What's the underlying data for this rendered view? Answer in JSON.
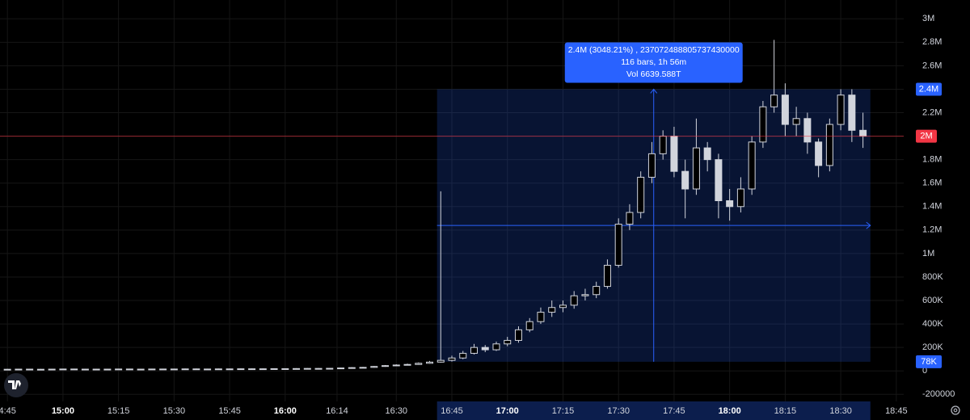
{
  "chart_data": {
    "type": "candlestick",
    "x": [
      "14:45",
      "14:48",
      "14:51",
      "14:54",
      "14:57",
      "15:00",
      "15:03",
      "15:06",
      "15:09",
      "15:12",
      "15:15",
      "15:18",
      "15:21",
      "15:24",
      "15:27",
      "15:30",
      "15:33",
      "15:36",
      "15:39",
      "15:42",
      "15:45",
      "15:48",
      "15:51",
      "15:54",
      "15:57",
      "16:00",
      "16:03",
      "16:06",
      "16:09",
      "16:12",
      "16:15",
      "16:18",
      "16:21",
      "16:24",
      "16:27",
      "16:30",
      "16:33",
      "16:36",
      "16:39",
      "16:42",
      "16:45",
      "16:48",
      "16:51",
      "16:54",
      "16:57",
      "17:00",
      "17:03",
      "17:06",
      "17:09",
      "17:12",
      "17:15",
      "17:18",
      "17:21",
      "17:24",
      "17:27",
      "17:30",
      "17:33",
      "17:36",
      "17:39",
      "17:42",
      "17:45",
      "17:48",
      "17:51",
      "17:54",
      "17:57",
      "18:00",
      "18:03",
      "18:06",
      "18:09",
      "18:12",
      "18:15",
      "18:18",
      "18:21",
      "18:24",
      "18:27",
      "18:30",
      "18:33",
      "18:36"
    ],
    "open": [
      14000,
      14000,
      15000,
      14000,
      14000,
      15000,
      16000,
      15000,
      15000,
      14000,
      15000,
      16000,
      15000,
      15000,
      16000,
      15000,
      16000,
      17000,
      16000,
      16000,
      17000,
      17000,
      18000,
      17000,
      18000,
      19000,
      18000,
      20000,
      21000,
      20000,
      22000,
      25000,
      28000,
      30000,
      38000,
      45000,
      50000,
      55000,
      65000,
      75000,
      90000,
      110000,
      150000,
      200000,
      180000,
      230000,
      260000,
      350000,
      420000,
      500000,
      540000,
      560000,
      640000,
      650000,
      720000,
      900000,
      1250000,
      1350000,
      1650000,
      1850000,
      2000000,
      1700000,
      1550000,
      1900000,
      1800000,
      1450000,
      1400000,
      1550000,
      1950000,
      2250000,
      2350000,
      2100000,
      2150000,
      1950000,
      1750000,
      2100000,
      2350000,
      2050000
    ],
    "high": [
      17000,
      18000,
      18000,
      17000,
      18000,
      19000,
      19000,
      18000,
      18000,
      18000,
      19000,
      19000,
      18000,
      19000,
      19000,
      19000,
      20000,
      20000,
      19000,
      20000,
      20000,
      21000,
      21000,
      21000,
      22000,
      22000,
      23000,
      24000,
      24000,
      25000,
      28000,
      32000,
      34000,
      42000,
      50000,
      56000,
      62000,
      72000,
      85000,
      1530000,
      130000,
      170000,
      230000,
      220000,
      250000,
      290000,
      380000,
      450000,
      540000,
      600000,
      600000,
      680000,
      700000,
      760000,
      950000,
      1300000,
      1420000,
      1700000,
      1950000,
      2050000,
      2080000,
      1800000,
      2150000,
      1950000,
      1850000,
      1550000,
      1650000,
      2000000,
      2300000,
      2820000,
      2450000,
      2250000,
      2200000,
      1980000,
      2150000,
      2400000,
      2400000,
      2200000
    ],
    "low": [
      11000,
      11000,
      11000,
      11000,
      11000,
      12000,
      12000,
      12000,
      11000,
      11000,
      12000,
      12000,
      12000,
      12000,
      12000,
      12000,
      13000,
      13000,
      13000,
      13000,
      14000,
      14000,
      14000,
      14000,
      15000,
      15000,
      15000,
      17000,
      17000,
      17000,
      19000,
      22000,
      25000,
      27000,
      35000,
      42000,
      47000,
      52000,
      62000,
      70000,
      80000,
      100000,
      140000,
      160000,
      170000,
      210000,
      240000,
      330000,
      400000,
      460000,
      500000,
      530000,
      600000,
      620000,
      700000,
      880000,
      1200000,
      1300000,
      1600000,
      1800000,
      1650000,
      1300000,
      1500000,
      1700000,
      1300000,
      1280000,
      1350000,
      1500000,
      1900000,
      2200000,
      2000000,
      2000000,
      1850000,
      1650000,
      1700000,
      2050000,
      1950000,
      1900000
    ],
    "close": [
      14000,
      15000,
      14000,
      14000,
      15000,
      16000,
      15000,
      15000,
      14000,
      15000,
      16000,
      15000,
      15000,
      16000,
      15000,
      16000,
      17000,
      16000,
      16000,
      17000,
      17000,
      18000,
      17000,
      18000,
      19000,
      18000,
      20000,
      21000,
      20000,
      22000,
      25000,
      28000,
      30000,
      38000,
      45000,
      50000,
      55000,
      65000,
      75000,
      90000,
      110000,
      150000,
      200000,
      180000,
      230000,
      260000,
      350000,
      420000,
      500000,
      540000,
      560000,
      640000,
      650000,
      720000,
      900000,
      1250000,
      1350000,
      1650000,
      1850000,
      2000000,
      1700000,
      1550000,
      1900000,
      1800000,
      1450000,
      1400000,
      1550000,
      1950000,
      2250000,
      2350000,
      2100000,
      2150000,
      1950000,
      1750000,
      2100000,
      2350000,
      2050000,
      2000000
    ],
    "color": "#d1d4dc",
    "xlim": [
      "14:43",
      "18:47"
    ],
    "xticks": [
      {
        "value": "14:45",
        "label": "4:45"
      },
      "15:00",
      "15:15",
      "15:30",
      "15:45",
      "16:00",
      "16:14",
      "16:30",
      "16:45",
      "17:00",
      "17:15",
      "17:30",
      "17:45",
      "18:00",
      "18:15",
      "18:30",
      "18:45"
    ],
    "ylim": [
      -260000,
      3160000
    ],
    "yticks": [
      {
        "value": 3000000,
        "label": "3M"
      },
      {
        "value": 2800000,
        "label": "2.8M"
      },
      {
        "value": 2600000,
        "label": "2.6M"
      },
      {
        "value": 2400000,
        "label": "2.4M"
      },
      {
        "value": 2200000,
        "label": "2.2M"
      },
      {
        "value": 2000000,
        "label": "2M"
      },
      {
        "value": 1800000,
        "label": "1.8M"
      },
      {
        "value": 1600000,
        "label": "1.6M"
      },
      {
        "value": 1400000,
        "label": "1.4M"
      },
      {
        "value": 1200000,
        "label": "1.2M"
      },
      {
        "value": 1000000,
        "label": "1M"
      },
      {
        "value": 800000,
        "label": "800K"
      },
      {
        "value": 600000,
        "label": "600K"
      },
      {
        "value": 400000,
        "label": "400K"
      },
      {
        "value": 200000,
        "label": "200K"
      },
      0,
      -200000
    ],
    "grid": true,
    "last_price": {
      "value": 2000000,
      "label": "2M",
      "color": "#f23645"
    },
    "measure": {
      "from": "16:41",
      "to": "18:38",
      "low": 78000,
      "high": 2400000,
      "low_label": "78K",
      "high_label": "2.4M",
      "change_label": "2.4M (3048.21%) , 237072488805737430000",
      "bars_label": "116 bars, 1h 56m",
      "volume_label": "Vol 6639.588T",
      "color": "#2962ff"
    }
  }
}
